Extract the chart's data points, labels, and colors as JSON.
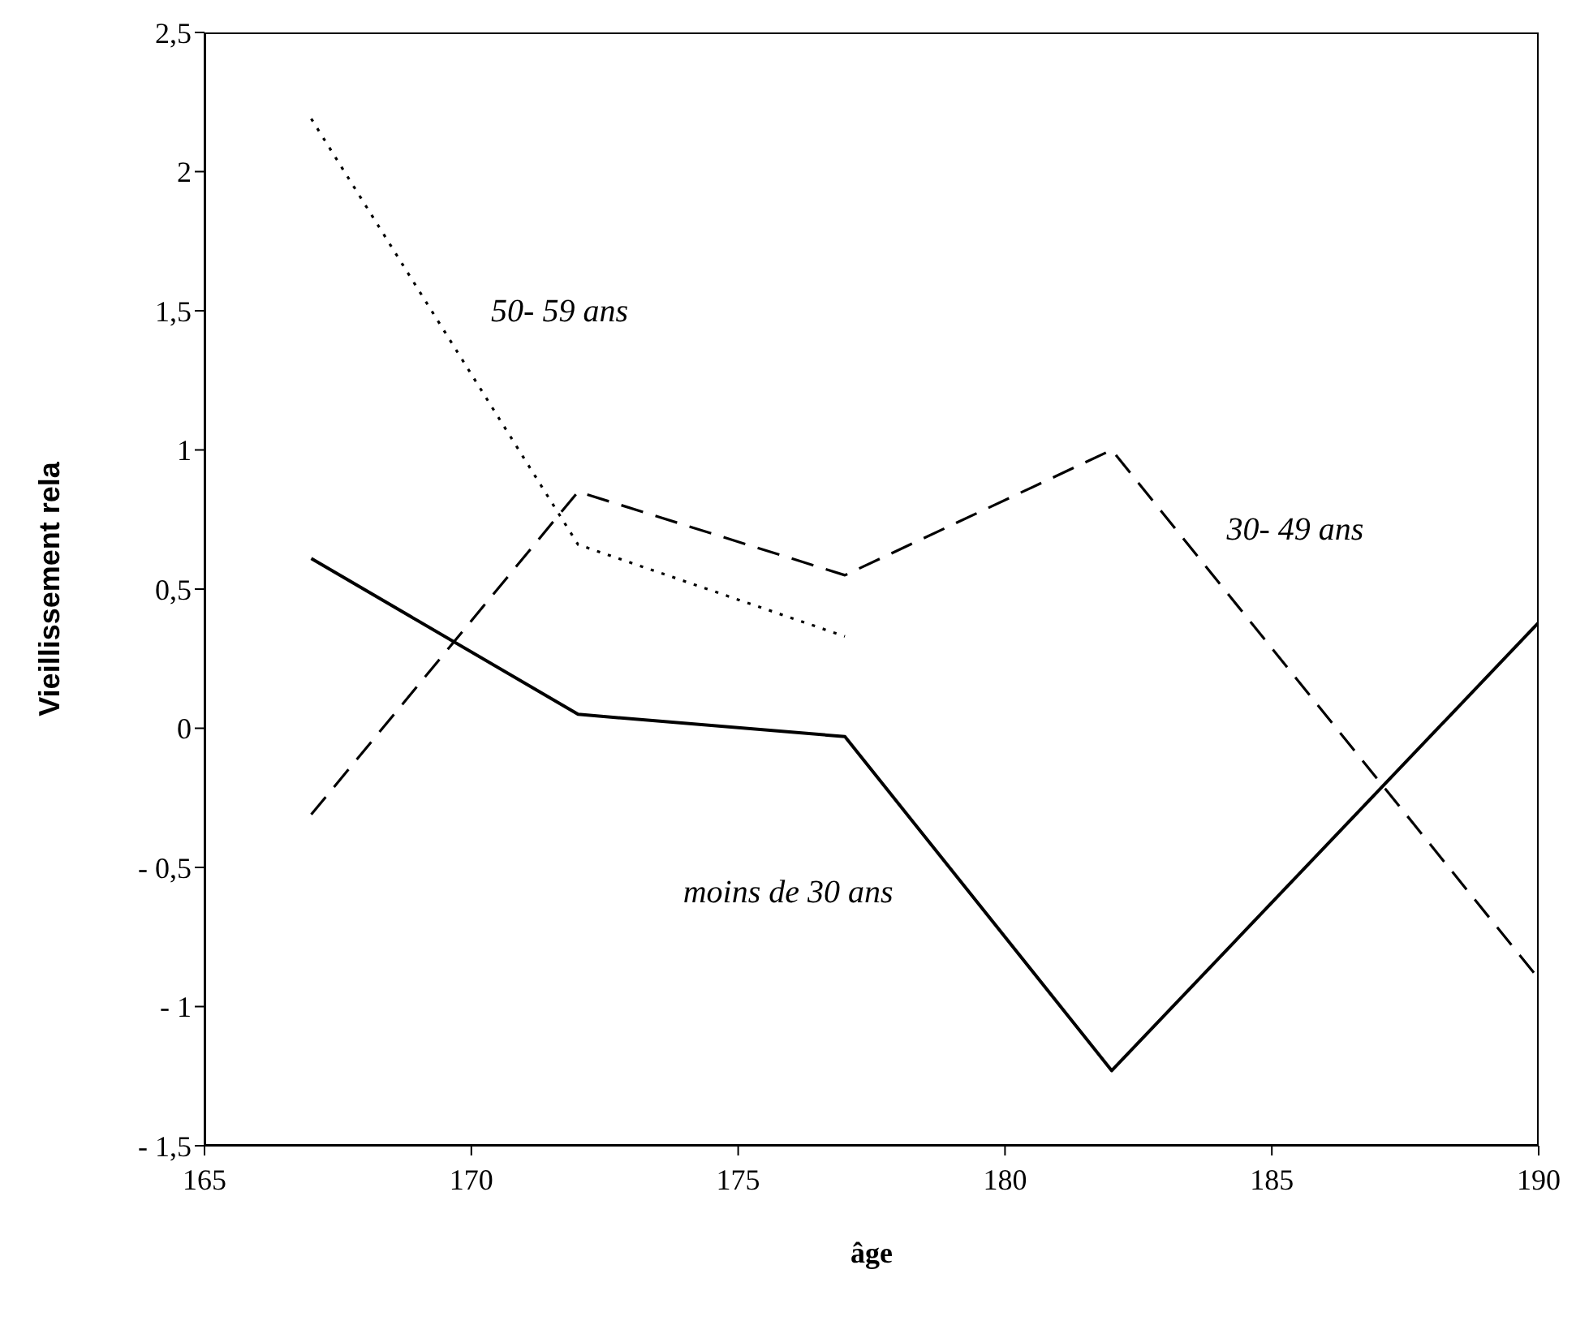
{
  "chart_data": {
    "type": "line",
    "xlabel": "âge",
    "ylabel": "Vieillissement rela",
    "xlim": [
      165,
      190
    ],
    "xticks": [
      165,
      170,
      175,
      180,
      185,
      190
    ],
    "ylim": [
      -1.5,
      2.5
    ],
    "yticks": [
      {
        "value": -1.5,
        "label": "- 1,5"
      },
      {
        "value": -1,
        "label": "- 1"
      },
      {
        "value": -0.5,
        "label": "- 0,5"
      },
      0,
      {
        "value": 0.5,
        "label": "0,5"
      },
      1,
      {
        "value": 1.5,
        "label": "1,5"
      },
      2,
      {
        "value": 2.5,
        "label": "2,5"
      }
    ],
    "grid": false,
    "legend": false,
    "marker": "none",
    "series": [
      {
        "name": "moins de 30 ans",
        "color": "#000000",
        "line_style": "solid",
        "x": [
          167,
          172,
          177,
          182,
          190
        ],
        "values": [
          0.61,
          0.05,
          -0.03,
          -1.23,
          0.38
        ]
      },
      {
        "name": "30- 49 ans",
        "color": "#000000",
        "line_style": "dashed",
        "x": [
          167,
          172,
          177,
          182,
          190
        ],
        "values": [
          -0.31,
          0.85,
          0.55,
          1.0,
          -0.9
        ]
      },
      {
        "name": "50- 59 ans",
        "color": "#000000",
        "line_style": "dotted",
        "x": [
          167,
          172,
          177
        ],
        "values": [
          2.19,
          0.66,
          0.33
        ]
      }
    ]
  }
}
